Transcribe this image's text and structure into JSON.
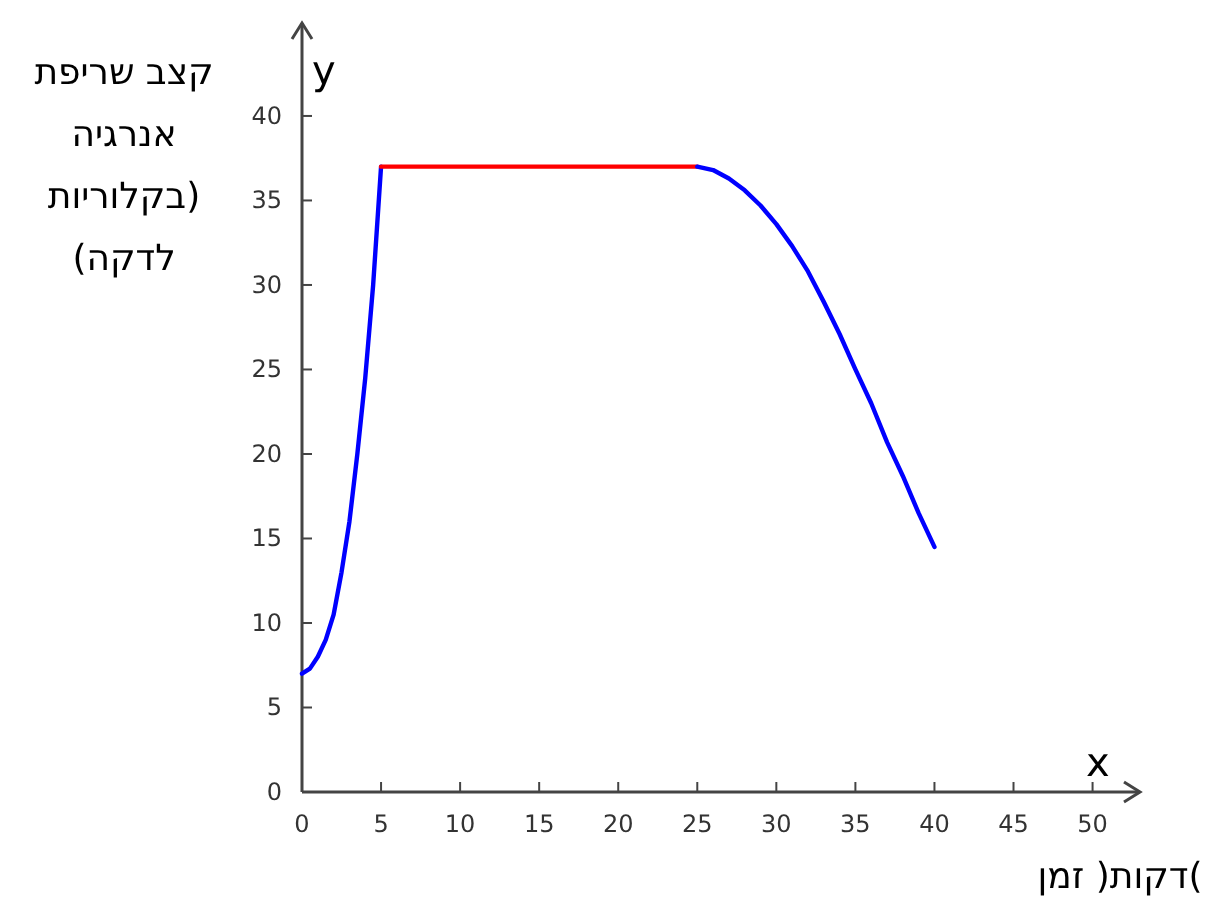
{
  "chart_data": {
    "type": "line",
    "xlabel": ")דקות( זמן",
    "ylabel": "קצב שריפת\nאנרגיה\nבקלוריות)\n(לדקה",
    "annotations": [
      "y",
      "x"
    ],
    "xlim": [
      0,
      53
    ],
    "ylim": [
      0,
      45.5
    ],
    "xticks": [
      0,
      5,
      10,
      15,
      20,
      25,
      30,
      35,
      40,
      45,
      50
    ],
    "yticks": [
      0,
      5,
      10,
      15,
      20,
      25,
      30,
      35,
      40
    ],
    "grid": false,
    "marker": "none",
    "line_style": "solid",
    "series": [
      {
        "color": "#0000ff",
        "x": [
          0,
          0.5,
          1,
          1.5,
          2,
          2.5,
          3,
          3.5,
          4,
          4.5,
          5
        ],
        "values": [
          7,
          7.3,
          8,
          9,
          10.5,
          13,
          16,
          20,
          24.5,
          30,
          37
        ]
      },
      {
        "color": "#ff0000",
        "x": [
          5,
          25
        ],
        "values": [
          37,
          37
        ]
      },
      {
        "color": "#0000ff",
        "x": [
          25,
          26,
          27,
          28,
          29,
          30,
          31,
          32,
          33,
          34,
          35,
          36,
          37,
          38,
          39,
          40
        ],
        "values": [
          37,
          36.8,
          36.3,
          35.6,
          34.7,
          33.6,
          32.3,
          30.8,
          29,
          27.1,
          25,
          23,
          20.7,
          18.7,
          16.5,
          14.5
        ]
      }
    ]
  }
}
